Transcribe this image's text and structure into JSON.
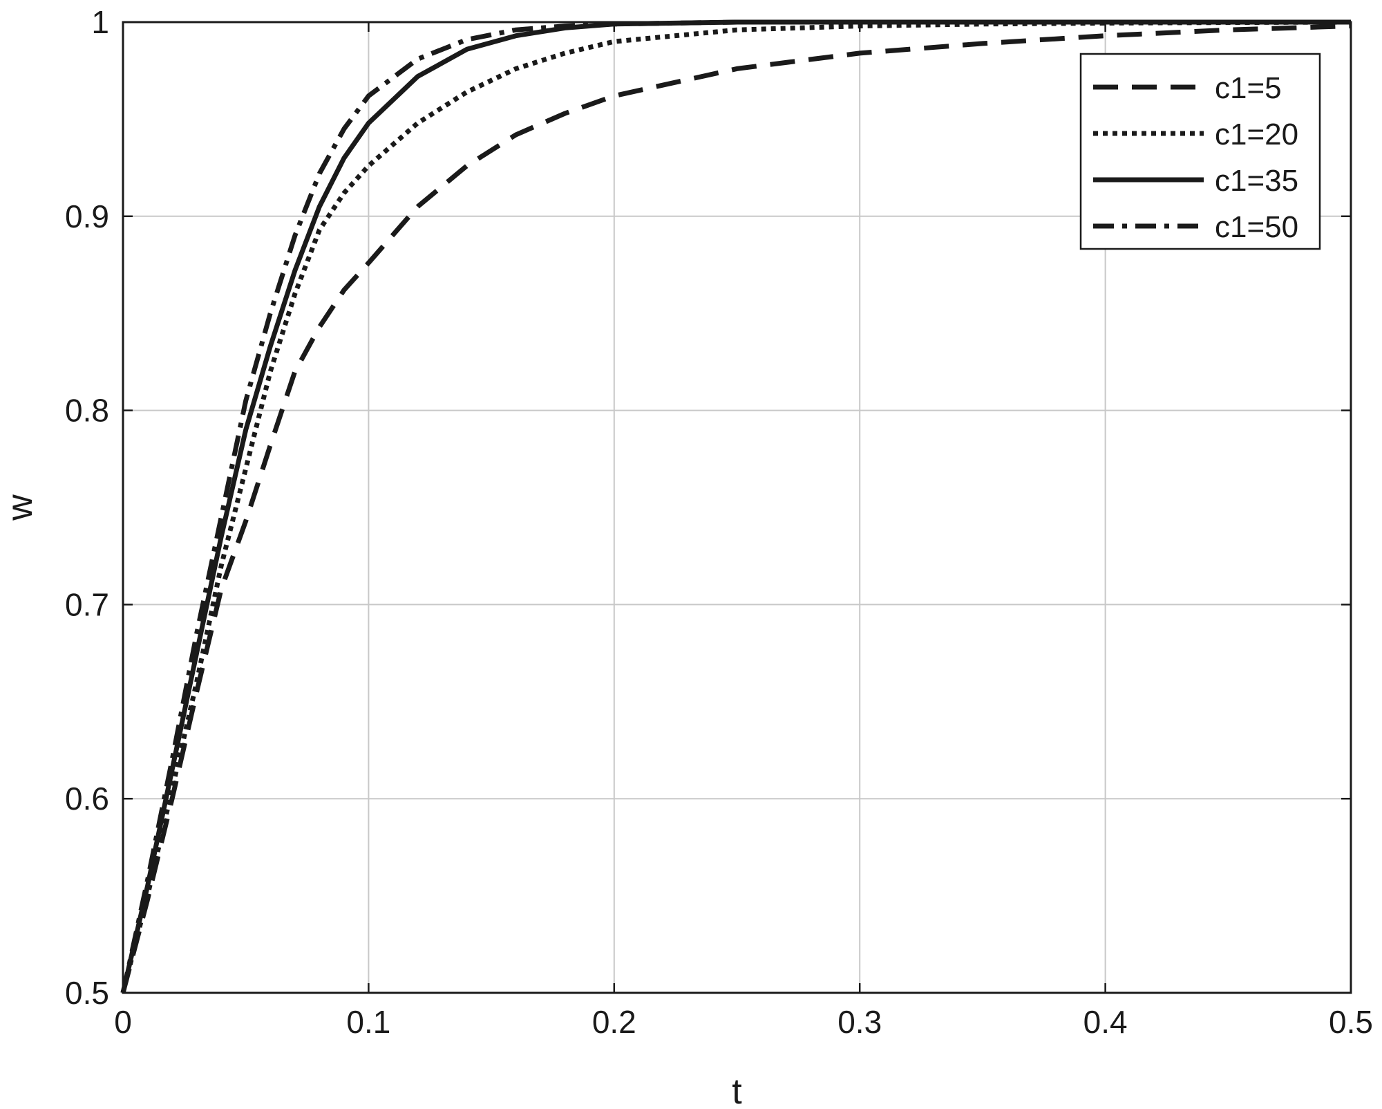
{
  "chart_data": {
    "type": "line",
    "title": "",
    "xlabel": "t",
    "ylabel": "w",
    "xlim": [
      0,
      0.5
    ],
    "ylim": [
      0.5,
      1
    ],
    "xticks": [
      "0",
      "0.1",
      "0.2",
      "0.3",
      "0.4",
      "0.5"
    ],
    "yticks": [
      "0.5",
      "0.6",
      "0.7",
      "0.8",
      "0.9",
      "1"
    ],
    "grid": true,
    "legend_position": "top-right",
    "series": [
      {
        "name": "c1=5",
        "style": "dashed",
        "color": "#1a1a1a",
        "x": [
          0,
          0.01,
          0.02,
          0.03,
          0.04,
          0.05,
          0.06,
          0.07,
          0.08,
          0.09,
          0.1,
          0.12,
          0.14,
          0.16,
          0.18,
          0.2,
          0.25,
          0.3,
          0.35,
          0.4,
          0.45,
          0.5
        ],
        "y": [
          0.5,
          0.548,
          0.6,
          0.655,
          0.708,
          0.743,
          0.782,
          0.82,
          0.843,
          0.862,
          0.876,
          0.905,
          0.926,
          0.942,
          0.953,
          0.962,
          0.976,
          0.984,
          0.989,
          0.993,
          0.996,
          0.998
        ]
      },
      {
        "name": "c1=20",
        "style": "dotted",
        "color": "#1a1a1a",
        "x": [
          0,
          0.01,
          0.02,
          0.03,
          0.04,
          0.05,
          0.06,
          0.07,
          0.08,
          0.09,
          0.1,
          0.12,
          0.14,
          0.16,
          0.18,
          0.2,
          0.25,
          0.3,
          0.35,
          0.4,
          0.45,
          0.5
        ],
        "y": [
          0.5,
          0.55,
          0.605,
          0.66,
          0.72,
          0.77,
          0.82,
          0.86,
          0.893,
          0.912,
          0.926,
          0.948,
          0.964,
          0.976,
          0.984,
          0.99,
          0.996,
          0.998,
          0.999,
          0.9995,
          0.9998,
          1.0
        ]
      },
      {
        "name": "c1=35",
        "style": "solid",
        "color": "#1a1a1a",
        "x": [
          0,
          0.01,
          0.02,
          0.03,
          0.04,
          0.05,
          0.06,
          0.07,
          0.08,
          0.09,
          0.1,
          0.12,
          0.14,
          0.16,
          0.18,
          0.2,
          0.25,
          0.3,
          0.35,
          0.4,
          0.45,
          0.5
        ],
        "y": [
          0.5,
          0.555,
          0.615,
          0.675,
          0.735,
          0.79,
          0.833,
          0.872,
          0.905,
          0.93,
          0.948,
          0.972,
          0.986,
          0.993,
          0.997,
          0.999,
          1.0,
          1.0,
          1.0,
          1.0,
          1.0,
          1.0
        ]
      },
      {
        "name": "c1=50",
        "style": "dashdot",
        "color": "#1a1a1a",
        "x": [
          0,
          0.01,
          0.02,
          0.03,
          0.04,
          0.05,
          0.06,
          0.07,
          0.08,
          0.09,
          0.1,
          0.12,
          0.14,
          0.16,
          0.18,
          0.2,
          0.25,
          0.3,
          0.35,
          0.4,
          0.45,
          0.5
        ],
        "y": [
          0.5,
          0.558,
          0.62,
          0.685,
          0.745,
          0.805,
          0.85,
          0.89,
          0.922,
          0.945,
          0.962,
          0.981,
          0.991,
          0.996,
          0.998,
          0.999,
          1.0,
          1.0,
          1.0,
          1.0,
          1.0,
          1.0
        ]
      }
    ]
  }
}
